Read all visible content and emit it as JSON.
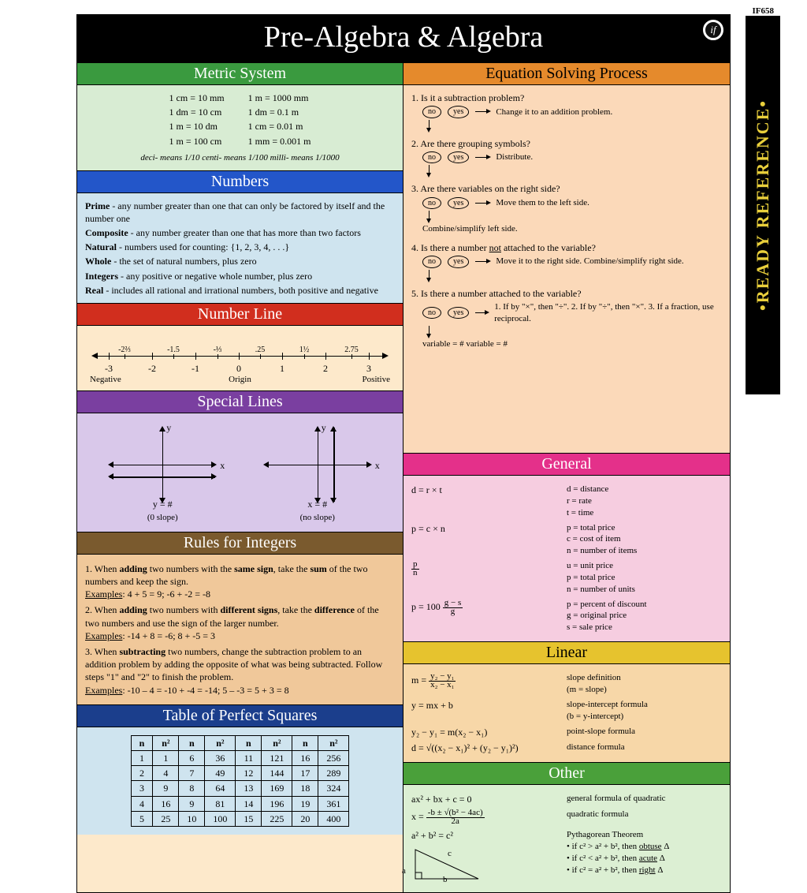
{
  "page": {
    "title": "Pre-Algebra & Algebra",
    "code": "IF658",
    "side_tab": "•READY REFERENCE•",
    "logo_text": "if"
  },
  "metric": {
    "title": "Metric System",
    "header_color": "#3a9a3f",
    "body_color": "#d8ecd3",
    "left": [
      "1 cm = 10 mm",
      "1 dm = 10 cm",
      "1 m  = 10 dm",
      "1 m  = 100 cm"
    ],
    "right": [
      "1 m  = 1000 mm",
      "1 dm = 0.1 m",
      "1 cm = 0.01 m",
      "1 mm = 0.001 m"
    ],
    "footer": "deci- means 1/10    centi- means 1/100    milli- means 1/1000"
  },
  "numbers": {
    "title": "Numbers",
    "header_color": "#2356c9",
    "body_color": "#cfe4ef",
    "items": [
      "<b>Prime</b> - any number greater than one that can only be factored by itself and the number one",
      "<b>Composite</b> - any number greater than one that has more than two factors",
      "<b>Natural</b> - numbers used for counting: {1, 2, 3, 4, . . .}",
      "<b>Whole</b> - the set of natural numbers, plus zero",
      "<b>Integers</b> - any positive or negative whole number, plus zero",
      "<b>Real</b> - includes all rational and irrational numbers, both positive and negative"
    ]
  },
  "numberline": {
    "title": "Number Line",
    "header_color": "#d12e1e",
    "body_color": "#fde9cb",
    "major": [
      "-3",
      "-2",
      "-1",
      "0",
      "1",
      "2",
      "3"
    ],
    "minor": [
      "-2⅔",
      "-1.5",
      "-⅓",
      ".25",
      "1½",
      "2.75"
    ],
    "labels": {
      "left": "Negative",
      "center": "Origin",
      "right": "Positive"
    }
  },
  "special": {
    "title": "Special Lines",
    "header_color": "#7a3fa0",
    "body_color": "#d9c8ea",
    "left": {
      "eq": "y = #",
      "desc": "(0 slope)"
    },
    "right": {
      "eq": "x = #",
      "desc": "(no slope)"
    }
  },
  "integers": {
    "title": "Rules for Integers",
    "header_color": "#7a5a2e",
    "body_color": "#f0c89a",
    "rules": [
      "1. When <b>adding</b> two numbers with the <b>same sign</b>, take the <b>sum</b> of the two numbers and keep the sign.<br><u>Examples</u>: 4 + 5 = 9;  -6 + -2 = -8",
      "2. When <b>adding</b> two numbers with <b>different signs</b>, take the <b>difference</b> of the two numbers and use the sign of the larger number.<br><u>Examples</u>: -14 + 8 = -6;  8 + -5 = 3",
      "3. When <b>subtracting</b> two numbers, change the subtraction problem to an addition problem by adding the opposite of what was being subtracted. Follow steps \"1\" and \"2\" to finish the problem.<br><u>Examples</u>: -10 – 4 = -10 + -4 = -14;  5 – -3 = 5 + 3 = 8"
    ]
  },
  "squares": {
    "title": "Table of Perfect Squares",
    "header_color": "#1b3e8c",
    "body_color": "#cfe4ef",
    "data": [
      [
        1,
        1,
        6,
        36,
        11,
        121,
        16,
        256
      ],
      [
        2,
        4,
        7,
        49,
        12,
        144,
        17,
        289
      ],
      [
        3,
        9,
        8,
        64,
        13,
        169,
        18,
        324
      ],
      [
        4,
        16,
        9,
        81,
        14,
        196,
        19,
        361
      ],
      [
        5,
        25,
        10,
        100,
        15,
        225,
        20,
        400
      ]
    ]
  },
  "solving": {
    "title": "Equation Solving Process",
    "header_color": "#e58a2c",
    "body_color": "#fbd9b9",
    "steps": [
      {
        "n": 1,
        "q": "Is it a subtraction problem?",
        "yes": "Change it to an addition problem.",
        "after": ""
      },
      {
        "n": 2,
        "q": "Are there grouping symbols?",
        "yes": "Distribute.",
        "after": ""
      },
      {
        "n": 3,
        "q": "Are there variables on the right side?",
        "yes": "Move them to the left side.",
        "after": "Combine/simplify left side."
      },
      {
        "n": 4,
        "q": "Is there a number <u>not</u> attached to the variable?",
        "yes": "Move it to the right side. Combine/simplify right side.",
        "after": ""
      },
      {
        "n": 5,
        "q": "Is there a number attached to the variable?",
        "yes": "1. If by \"×\", then \"÷\".  2. If by \"÷\", then \"×\".  3. If a fraction, use reciprocal.",
        "after": "variable = #                    variable = #"
      }
    ]
  },
  "general": {
    "title": "General",
    "header_color": "#e4308a",
    "body_color": "#f6cde0",
    "rows": [
      {
        "f": "d = r × t",
        "d": "d = distance<br>r = rate<br>t = time"
      },
      {
        "f": "p = c × n",
        "d": "p = total price<br>c = cost of item<br>n = number of items"
      },
      {
        "f": "u = p / n",
        "d": "u = unit price<br>p = total price<br>n = number of units",
        "frac": [
          "p",
          "n"
        ]
      },
      {
        "f": "p = 100 ( (g − s) / g )",
        "d": "p = percent of discount<br>g = original price<br>s = sale price",
        "frac": [
          "g − s",
          "g"
        ],
        "prefix": "p = 100 "
      }
    ]
  },
  "linear": {
    "title": "Linear",
    "header_color": "#e6c32e",
    "body_color": "#f7d7a8",
    "rows": [
      {
        "f": "m = (y₂ − y₁)/(x₂ − x₁)",
        "d": "slope definition<br>(m = slope)",
        "frac": [
          "y₂ − y₁",
          "x₂ − x₁"
        ],
        "prefix": "m = "
      },
      {
        "f": "y = mx + b",
        "d": "slope-intercept formula<br>(b = y-intercept)"
      },
      {
        "f": "y₂ − y₁ = m(x₂ − x₁)",
        "d": "point-slope formula"
      },
      {
        "f": "d = √((x₂ − x₁)² + (y₂ − y₁)²)",
        "d": "distance formula"
      }
    ]
  },
  "other": {
    "title": "Other",
    "header_color": "#4aa03a",
    "body_color": "#dcefd3",
    "rows": [
      {
        "f": "ax² + bx + c = 0",
        "d": "general formula of quadratic"
      },
      {
        "f": "x = (-b ± √(b² − 4ac)) / 2a",
        "d": "quadratic formula",
        "frac": [
          "-b ± √(b² − 4ac)",
          "2a"
        ],
        "prefix": "x = "
      },
      {
        "f": "a² + b² = c²",
        "d": "Pythagorean Theorem<br>• if c² > a² + b², then <u>obtuse</u> Δ<br>• if c² < a² + b², then <u>acute</u> Δ<br>• if c² = a² + b², then <u>right</u> Δ"
      }
    ]
  }
}
